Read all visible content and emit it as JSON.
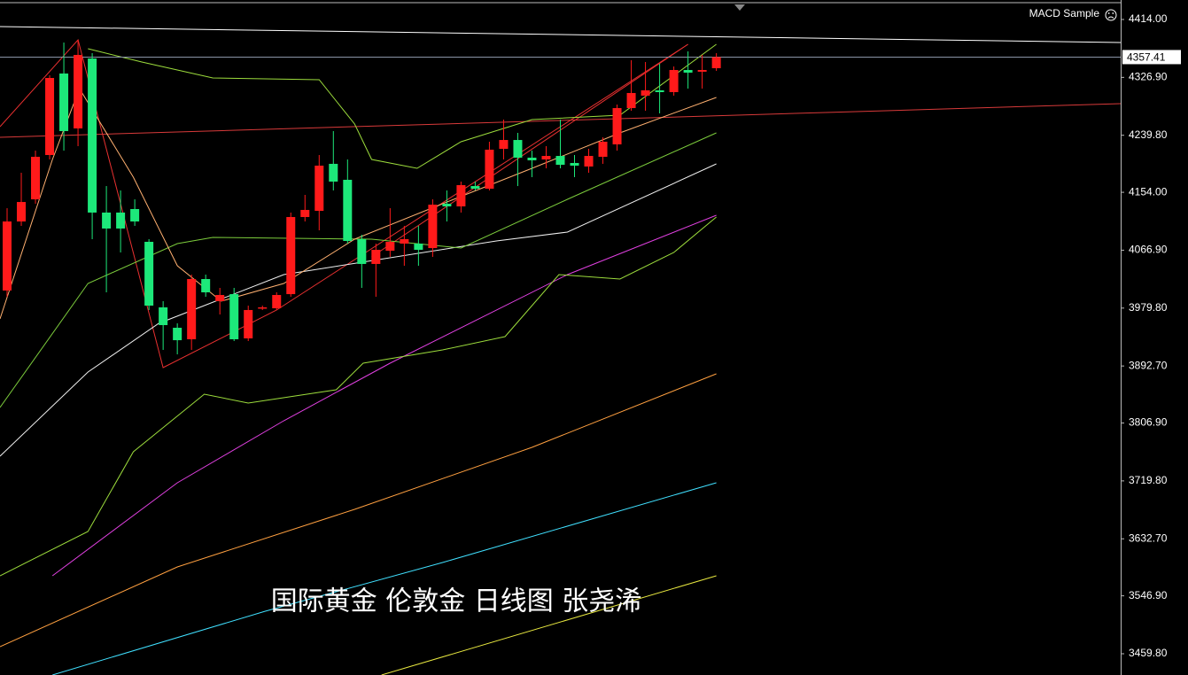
{
  "chart_data": {
    "type": "candlestick",
    "indicator": "MACD Sample",
    "annotation": "国际黄金 伦敦金 日线图 张尧浠",
    "up_color": "#ff1a1a",
    "down_color": "#1de87a",
    "xlim": [
      -0.5,
      78.5
    ],
    "ylim": [
      3427.8,
      4443.3
    ],
    "yticks": [
      {
        "value": 4414,
        "label": "4414.00"
      },
      {
        "value": 4326.9,
        "label": "4326.90"
      },
      {
        "value": 4239.8,
        "label": "4239.80"
      },
      {
        "value": 4154,
        "label": "4154.00"
      },
      {
        "value": 4066.9,
        "label": "4066.90"
      },
      {
        "value": 3979.8,
        "label": "3979.80"
      },
      {
        "value": 3892.7,
        "label": "3892.70"
      },
      {
        "value": 3806.9,
        "label": "3806.90"
      },
      {
        "value": 3719.8,
        "label": "3719.80"
      },
      {
        "value": 3632.7,
        "label": "3632.70"
      },
      {
        "value": 3546.9,
        "label": "3546.90"
      },
      {
        "value": 3459.8,
        "label": "3459.80"
      }
    ],
    "last_price": 4357.41,
    "open": [
      4006.2,
      4110.1,
      4143.4,
      4210.1,
      4332.7,
      4250.1,
      4355.3,
      4123.5,
      4123.5,
      4128.8,
      4079.5,
      3980.9,
      3950.2,
      3932.9,
      4023.5,
      3990.2,
      4000.8,
      3934.2,
      3979.5,
      3979.5,
      4000.8,
      4116.8,
      4126.1,
      4196.8,
      4172.8,
      4083.5,
      4046.2,
      4066.1,
      4076.8,
      4076.8,
      4070.1,
      4136.8,
      4132.8,
      4163.4,
      4159.4,
      4219.4,
      4232.7,
      4206.1,
      4203.4,
      4208.7,
      4198.1,
      4192.8,
      4207.4,
      4226.1,
      4280.7,
      4299.4,
      4307.4,
      4304.7,
      4338.0,
      4335.4,
      4340.7
    ],
    "high": [
      4130.1,
      4183.4,
      4216.7,
      4330.0,
      4379.3,
      4383.3,
      4363.3,
      4163.4,
      4156.8,
      4143.4,
      4083.5,
      3990.2,
      3956.9,
      4030.2,
      4030.2,
      4010.2,
      4010.2,
      3983.5,
      3983.5,
      4003.5,
      4123.5,
      4150.1,
      4210.1,
      4246.1,
      4203.4,
      4090.1,
      4076.8,
      4130.1,
      4103.5,
      4103.5,
      4143.4,
      4156.8,
      4170.1,
      4170.1,
      4230.1,
      4263.4,
      4243.4,
      4216.7,
      4223.4,
      4263.4,
      4210.1,
      4219.4,
      4236.7,
      4286.0,
      4352.7,
      4350.0,
      4347.3,
      4343.3,
      4366.0,
      4360.7,
      4363.3
    ],
    "low": [
      3996.8,
      4103.5,
      4136.8,
      4203.4,
      4216.7,
      4223.4,
      4083.5,
      4003.5,
      4063.5,
      4103.5,
      3976.9,
      3916.9,
      3910.2,
      3916.9,
      3996.8,
      3970.2,
      3930.2,
      3930.2,
      3976.9,
      3976.9,
      3996.8,
      4110.1,
      4096.8,
      4156.8,
      4076.8,
      4010.2,
      3996.8,
      4056.8,
      4043.5,
      4043.5,
      4056.8,
      4110.1,
      4123.5,
      4156.8,
      4156.8,
      4203.4,
      4163.4,
      4176.8,
      4190.1,
      4190.1,
      4176.8,
      4183.4,
      4196.8,
      4216.7,
      4276.7,
      4276.7,
      4272.7,
      4299.4,
      4310.0,
      4310.0,
      4336.7
    ],
    "close": [
      4110.1,
      4139.4,
      4207.4,
      4326.0,
      4246.1,
      4360.7,
      4123.5,
      4099.5,
      4099.5,
      4110.1,
      3983.5,
      3954.2,
      3931.5,
      4023.5,
      4003.5,
      3999.5,
      3932.9,
      3976.9,
      3980.9,
      3999.5,
      4116.8,
      4127.5,
      4194.1,
      4170.1,
      4080.8,
      4046.2,
      4067.5,
      4079.5,
      4083.5,
      4067.5,
      4135.4,
      4132.8,
      4164.8,
      4159.4,
      4218.1,
      4232.7,
      4206.1,
      4202.1,
      4208.7,
      4195.4,
      4194.1,
      4208.7,
      4230.1,
      4280.7,
      4303.4,
      4307.4,
      4304.7,
      4338.0,
      4334.0,
      4338.0,
      4357.41
    ],
    "overlays": [
      {
        "color": "#ffffff",
        "x": [
          -0.5,
          78.5
        ],
        "values": [
          4403.3,
          4379.3
        ]
      },
      {
        "color": "#d83a3a",
        "x": [
          -0.5,
          78.5
        ],
        "values": [
          4236.7,
          4287.4
        ]
      },
      {
        "color": "#e83030",
        "x": [
          -0.5,
          5.0,
          11.0,
          19.0,
          48.0
        ],
        "values": [
          4252.7,
          4383.3,
          3890.3,
          3976.9,
          4376.7
        ]
      },
      {
        "color": "#e83030",
        "x": [
          25.7,
          48.0
        ],
        "values": [
          4056.8,
          4376.7
        ]
      },
      {
        "color": "#e040e0",
        "x": [
          3.2,
          12.0,
          19.5,
          27.0,
          39.5,
          50.0
        ],
        "values": [
          3577.0,
          3717.0,
          3810.3,
          3896.9,
          4030.2,
          4119.5
        ]
      },
      {
        "color": "#ffa040",
        "x": [
          -0.5,
          12.0,
          24.5,
          37.0,
          50.0
        ],
        "values": [
          3470.4,
          3590.4,
          3677.0,
          3770.3,
          3880.9
        ]
      },
      {
        "color": "#40e0ff",
        "x": [
          3.2,
          18.2,
          30.7,
          50.0
        ],
        "values": [
          3427.8,
          3523.7,
          3597.0,
          3717.0
        ]
      },
      {
        "color": "#e8e840",
        "x": [
          26.4,
          50.0
        ],
        "values": [
          3427.8,
          3577.0
        ]
      },
      {
        "color": "#f0f0f0",
        "x": [
          -0.5,
          5.7,
          10.7,
          19.5,
          34.5,
          39.5,
          50.0
        ],
        "values": [
          3757.0,
          3883.6,
          3956.9,
          4030.2,
          4080.8,
          4094.1,
          4196.8
        ]
      },
      {
        "color": "#9cdc3c",
        "x": [
          5.7,
          9.5,
          14.5,
          22.0,
          24.5,
          25.7,
          28.9,
          32.0,
          37.0,
          43.2,
          50.0
        ],
        "values": [
          4370.0,
          4350.0,
          4326.0,
          4323.4,
          4256.7,
          4203.4,
          4190.1,
          4230.1,
          4263.4,
          4270.0,
          4376.7
        ]
      },
      {
        "color": "#9cdc3c",
        "x": [
          -0.5,
          5.7,
          8.9,
          13.9,
          17.0,
          23.2,
          25.1,
          30.7,
          35.1,
          38.9,
          43.2,
          47.0,
          50.0
        ],
        "values": [
          3577.0,
          3643.7,
          3763.6,
          3850.3,
          3836.9,
          3856.9,
          3896.9,
          3916.9,
          3936.9,
          4030.2,
          4023.5,
          4063.5,
          4116.8
        ]
      },
      {
        "color": "#7ccc3c",
        "x": [
          -0.5,
          5.7,
          12.0,
          14.5,
          25.7,
          32.0,
          39.5,
          50.0
        ],
        "values": [
          3830.3,
          4016.8,
          4076.8,
          4086.1,
          4083.5,
          4070.1,
          4143.4,
          4243.4
        ]
      },
      {
        "color": "#ffb070",
        "x": [
          -0.5,
          3.2,
          5.1,
          8.9,
          12.0,
          15.1,
          19.5,
          24.5,
          30.7,
          37.0,
          43.2,
          50.0
        ],
        "values": [
          3963.5,
          4203.4,
          4310.0,
          4176.8,
          4043.5,
          3990.2,
          4016.8,
          4083.5,
          4136.8,
          4190.1,
          4243.4,
          4296.7
        ]
      }
    ]
  }
}
